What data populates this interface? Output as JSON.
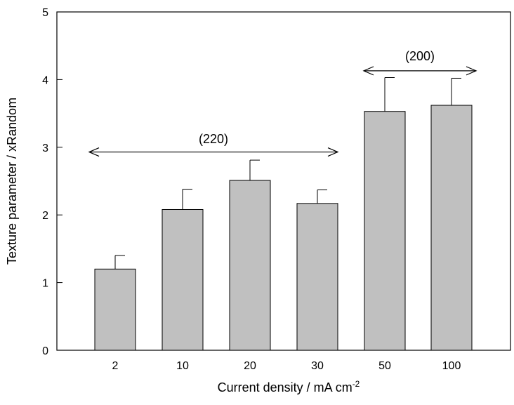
{
  "chart_data": {
    "type": "bar",
    "categories": [
      "2",
      "10",
      "20",
      "30",
      "50",
      "100"
    ],
    "values": [
      1.2,
      2.08,
      2.51,
      2.17,
      3.53,
      3.62
    ],
    "error_plus": [
      0.2,
      0.3,
      0.3,
      0.2,
      0.5,
      0.4
    ],
    "xlabel": "Current density / mA cm",
    "xlabel_superscript": "-2",
    "ylabel": "Texture parameter / xRandom",
    "ylim": [
      0,
      5
    ],
    "yticks": [
      "0",
      "1",
      "2",
      "3",
      "4",
      "5"
    ],
    "grid": false,
    "bar_color": "#c0c0c0",
    "annotations": [
      {
        "text": "(220)",
        "y": 2.93,
        "from_category": "2",
        "to_category": "30"
      },
      {
        "text": "(200)",
        "y": 4.13,
        "from_category": "50",
        "to_category": "100"
      }
    ]
  }
}
